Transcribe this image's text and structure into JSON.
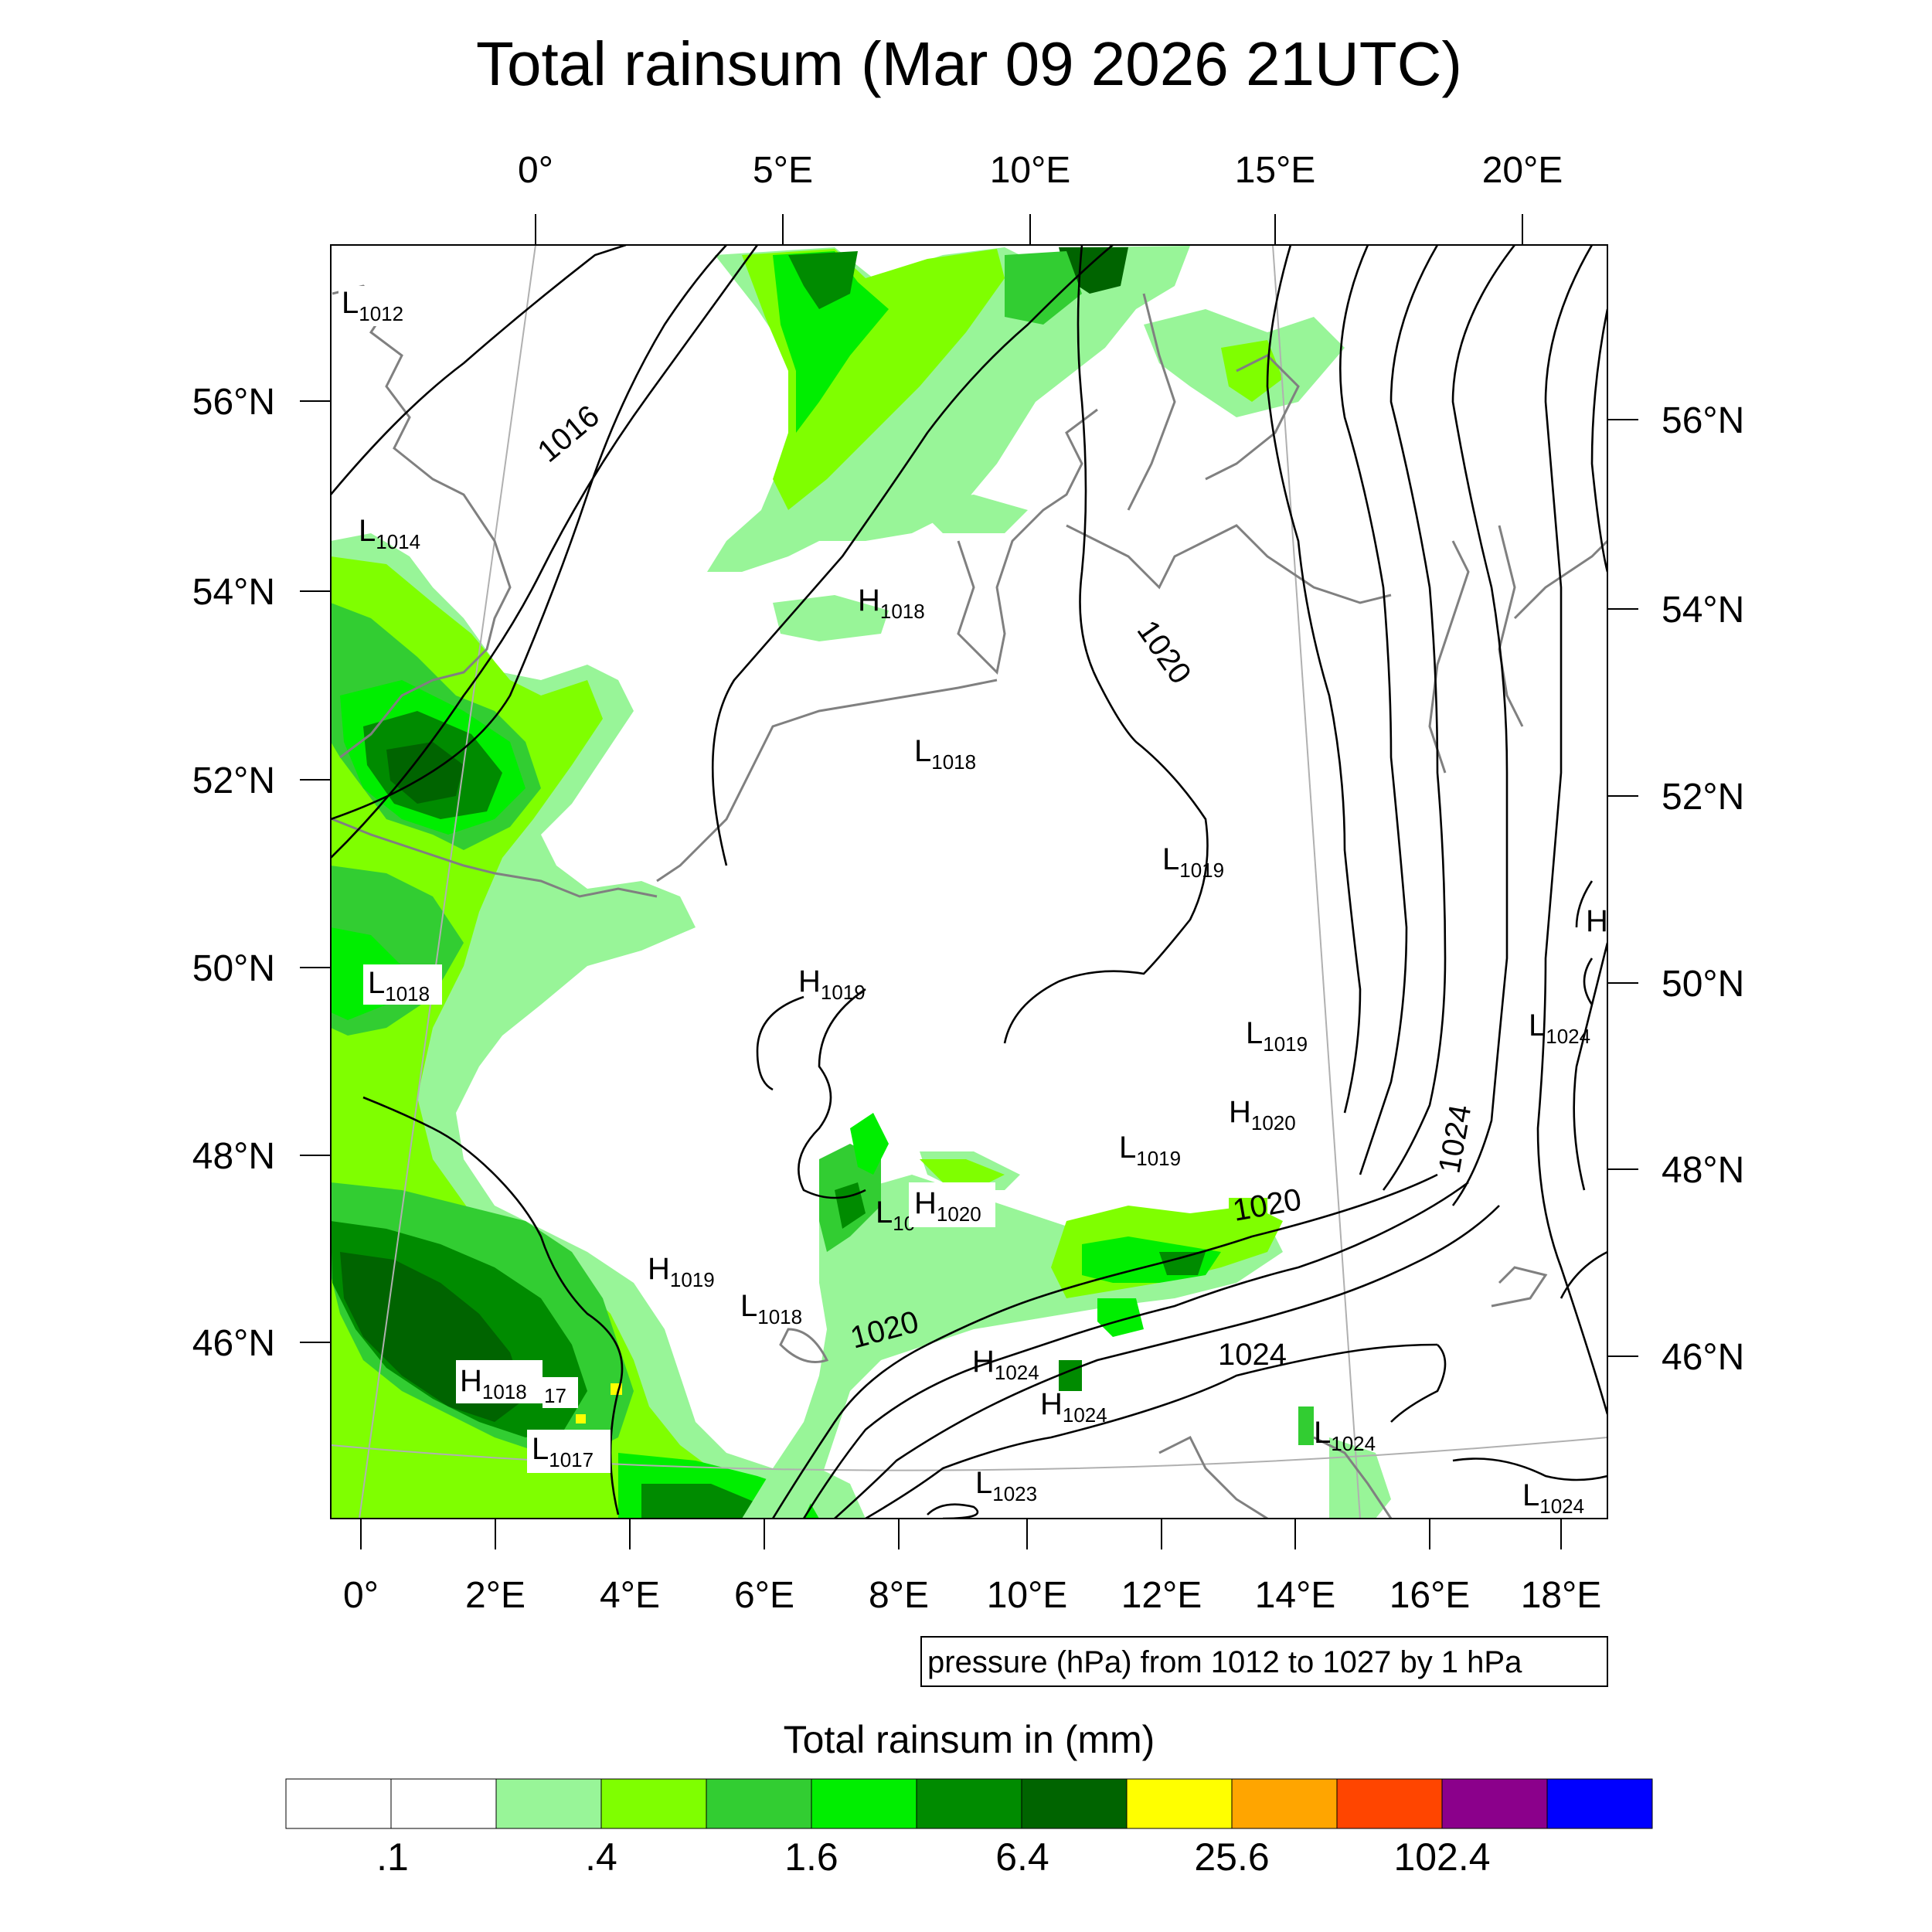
{
  "title": "Total rainsum (Mar 09 2026 21UTC)",
  "axes": {
    "top_lon_labels": [
      "0°",
      "5°E",
      "10°E",
      "15°E",
      "20°E"
    ],
    "bottom_lon_labels": [
      "0°",
      "2°E",
      "4°E",
      "6°E",
      "8°E",
      "10°E",
      "12°E",
      "14°E",
      "16°E",
      "18°E"
    ],
    "left_lat_labels": [
      "56°N",
      "54°N",
      "52°N",
      "50°N",
      "48°N",
      "46°N"
    ],
    "right_lat_labels": [
      "56°N",
      "54°N",
      "52°N",
      "50°N",
      "48°N",
      "46°N"
    ]
  },
  "contour_note": "pressure (hPa) from 1012 to 1027 by 1 hPa",
  "contour_line_labels": [
    "1016",
    "1020",
    "1020",
    "1020",
    "1024",
    "1024"
  ],
  "pressure_centers": [
    {
      "type": "L",
      "value": "1012"
    },
    {
      "type": "L",
      "value": "1014"
    },
    {
      "type": "H",
      "value": "1018"
    },
    {
      "type": "L",
      "value": "1018"
    },
    {
      "type": "L",
      "value": "1019"
    },
    {
      "type": "L",
      "value": "1018"
    },
    {
      "type": "H",
      "value": "1019"
    },
    {
      "type": "L",
      "value": "1019"
    },
    {
      "type": "H",
      "value": "1020"
    },
    {
      "type": "L",
      "value": "1019"
    },
    {
      "type": "L",
      "value": "1024"
    },
    {
      "type": "H",
      "value": ""
    },
    {
      "type": "L",
      "value": "10"
    },
    {
      "type": "H",
      "value": "1020"
    },
    {
      "type": "H",
      "value": "1019"
    },
    {
      "type": "L",
      "value": "1018"
    },
    {
      "type": "H",
      "value": "1024"
    },
    {
      "type": "H",
      "value": "1024"
    },
    {
      "type": "H",
      "value": "1018"
    },
    {
      "type": "L",
      "value": "1017"
    },
    {
      "type": "L",
      "value": "1023"
    },
    {
      "type": "L",
      "value": "1024"
    },
    {
      "type": "L",
      "value": "1024"
    }
  ],
  "partial_label": "17",
  "legend": {
    "title": "Total rainsum in (mm)",
    "colors": [
      "#ffffff",
      "#ffffff",
      "#98f598",
      "#7fff00",
      "#32cd32",
      "#00ee00",
      "#008b00",
      "#006400",
      "#ffff00",
      "#ffa500",
      "#ff4500",
      "#8b008b",
      "#0000ff"
    ],
    "labels": [
      ".1",
      ".4",
      "1.6",
      "6.4",
      "25.6",
      "102.4"
    ]
  }
}
